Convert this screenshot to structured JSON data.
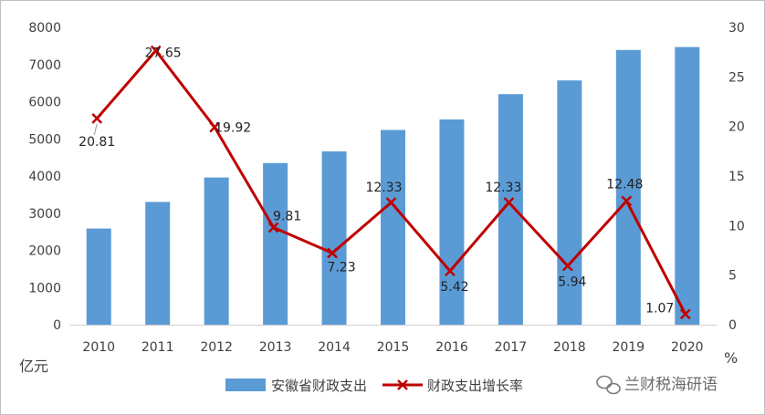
{
  "chart_data": {
    "type": "bar+line",
    "categories": [
      "2010",
      "2011",
      "2012",
      "2013",
      "2014",
      "2015",
      "2016",
      "2017",
      "2018",
      "2019",
      "2020"
    ],
    "series": [
      {
        "name": "安徽省财政支出",
        "type": "bar",
        "axis": "left",
        "color": "#5b9bd5",
        "values": [
          2587,
          3303,
          3961,
          4350,
          4664,
          5240,
          5523,
          6204,
          6572,
          7392,
          7471
        ]
      },
      {
        "name": "财政支出增长率",
        "type": "line",
        "axis": "right",
        "color": "#c00000",
        "marker": "x",
        "values": [
          20.81,
          27.65,
          19.92,
          9.81,
          7.23,
          12.33,
          5.42,
          12.33,
          5.94,
          12.48,
          1.07
        ],
        "labels": [
          "20.81",
          "27.65",
          "19.92",
          "9.81",
          "7.23",
          "12.33",
          "5.42",
          "12.33",
          "5.94",
          "12.48",
          "1.07"
        ]
      }
    ],
    "y_left": {
      "unit": "亿元",
      "ylim": [
        0,
        8000
      ],
      "ticks": [
        "0",
        "1000",
        "2000",
        "3000",
        "4000",
        "5000",
        "6000",
        "7000",
        "8000"
      ]
    },
    "y_right": {
      "unit": "%",
      "ylim": [
        0,
        30
      ],
      "ticks": [
        "0",
        "5",
        "10",
        "15",
        "20",
        "25",
        "30"
      ]
    },
    "grid": false,
    "legend_position": "bottom"
  },
  "watermark": {
    "text": "兰财税海研语",
    "icon": "wechat-icon"
  }
}
